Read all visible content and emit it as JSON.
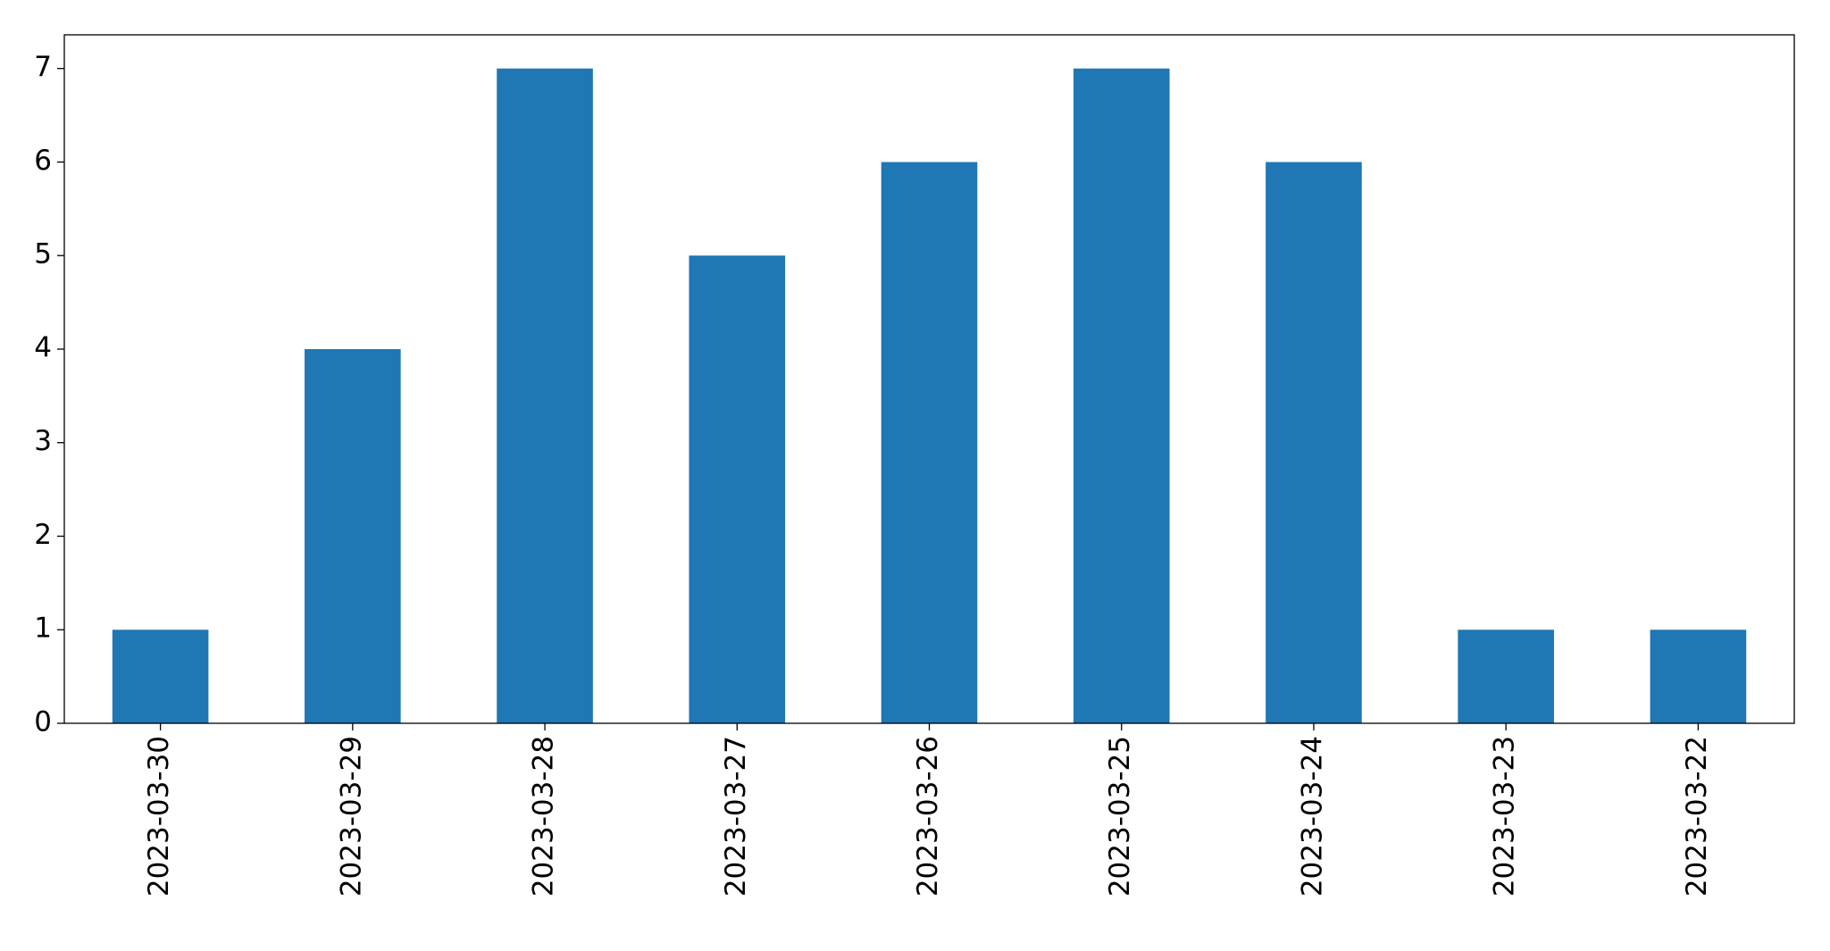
{
  "chart_data": {
    "type": "bar",
    "categories": [
      "2023-03-30",
      "2023-03-29",
      "2023-03-28",
      "2023-03-27",
      "2023-03-26",
      "2023-03-25",
      "2023-03-24",
      "2023-03-23",
      "2023-03-22"
    ],
    "values": [
      1,
      4,
      7,
      5,
      6,
      7,
      6,
      1,
      1
    ],
    "color": "#1f77b4",
    "ylim": [
      0,
      7.36
    ],
    "yticks": [
      0,
      1,
      2,
      3,
      4,
      5,
      6,
      7
    ],
    "grid": false
  }
}
